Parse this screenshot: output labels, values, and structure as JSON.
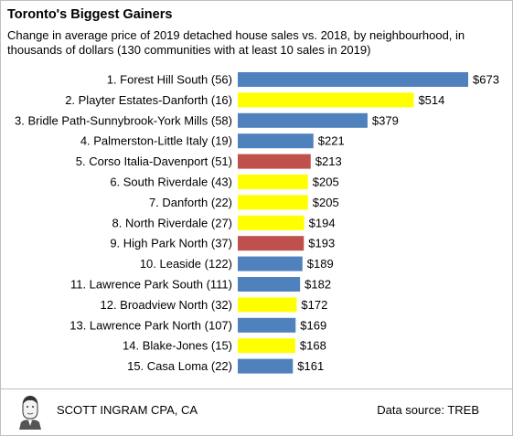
{
  "chart_data": {
    "type": "bar",
    "orientation": "horizontal",
    "title": "Toronto's Biggest Gainers",
    "subtitle": "Change in average price of 2019 detached house sales vs. 2018, by neighbourhood, in thousands of dollars (130 communities with at least 10 sales in 2019)",
    "categories": [
      "1. Forest Hill South (56)",
      "2. Playter Estates-Danforth (16)",
      "3. Bridle Path-Sunnybrook-York Mills (58)",
      "4. Palmerston-Little Italy (19)",
      "5. Corso Italia-Davenport (51)",
      "6. South Riverdale (43)",
      "7. Danforth (22)",
      "8. North Riverdale (27)",
      "9. High Park North (37)",
      "10. Leaside (122)",
      "11. Lawrence Park South (111)",
      "12. Broadview North (32)",
      "13. Lawrence Park North (107)",
      "14. Blake-Jones (15)",
      "15. Casa Loma (22)"
    ],
    "values": [
      673,
      514,
      379,
      221,
      213,
      205,
      205,
      194,
      193,
      189,
      182,
      172,
      169,
      168,
      161
    ],
    "value_labels": [
      "$673",
      "$514",
      "$379",
      "$221",
      "$213",
      "$205",
      "$205",
      "$194",
      "$193",
      "$189",
      "$182",
      "$172",
      "$169",
      "$168",
      "$161"
    ],
    "bar_colors": [
      "#4f81bd",
      "#ffff00",
      "#4f81bd",
      "#4f81bd",
      "#c0504d",
      "#ffff00",
      "#ffff00",
      "#ffff00",
      "#c0504d",
      "#4f81bd",
      "#4f81bd",
      "#ffff00",
      "#4f81bd",
      "#ffff00",
      "#4f81bd"
    ],
    "xlim": [
      0,
      673
    ],
    "grid": false,
    "legend": "none"
  },
  "footer": {
    "author": "SCOTT INGRAM CPA, CA",
    "source": "Data source: TREB"
  }
}
